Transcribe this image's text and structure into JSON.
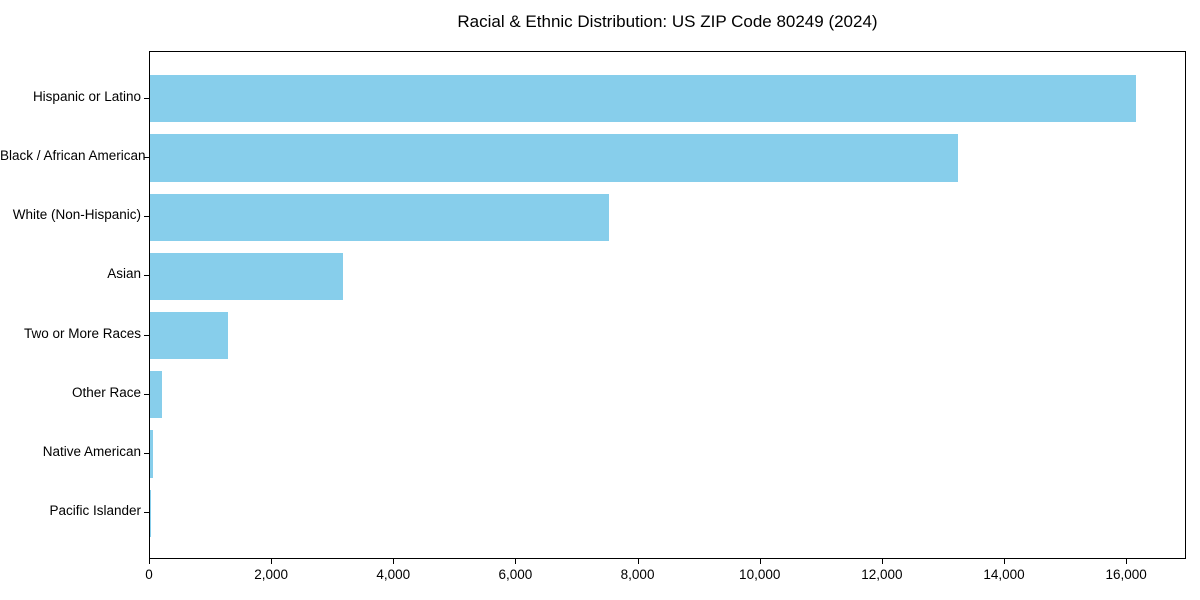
{
  "chart_data": {
    "type": "bar",
    "orientation": "horizontal",
    "title": "Racial & Ethnic Distribution: US ZIP Code 80249 (2024)",
    "categories": [
      "Hispanic or Latino",
      "Black / African American",
      "White (Non-Hispanic)",
      "Asian",
      "Two or More Races",
      "Other Race",
      "Native American",
      "Pacific Islander"
    ],
    "values": [
      16150,
      13230,
      7520,
      3160,
      1280,
      200,
      50,
      10
    ],
    "xlabel": "",
    "ylabel": "",
    "xlim": [
      0,
      16980
    ],
    "xticks": [
      0,
      2000,
      4000,
      6000,
      8000,
      10000,
      12000,
      14000,
      16000
    ],
    "xtick_labels": [
      "0",
      "2,000",
      "4,000",
      "6,000",
      "8,000",
      "10,000",
      "12,000",
      "14,000",
      "16,000"
    ],
    "bar_color": "#87CEEB",
    "text_color": "#000000",
    "spine_color": "#000000",
    "background_color": "#ffffff",
    "grid": false,
    "legend": null
  }
}
